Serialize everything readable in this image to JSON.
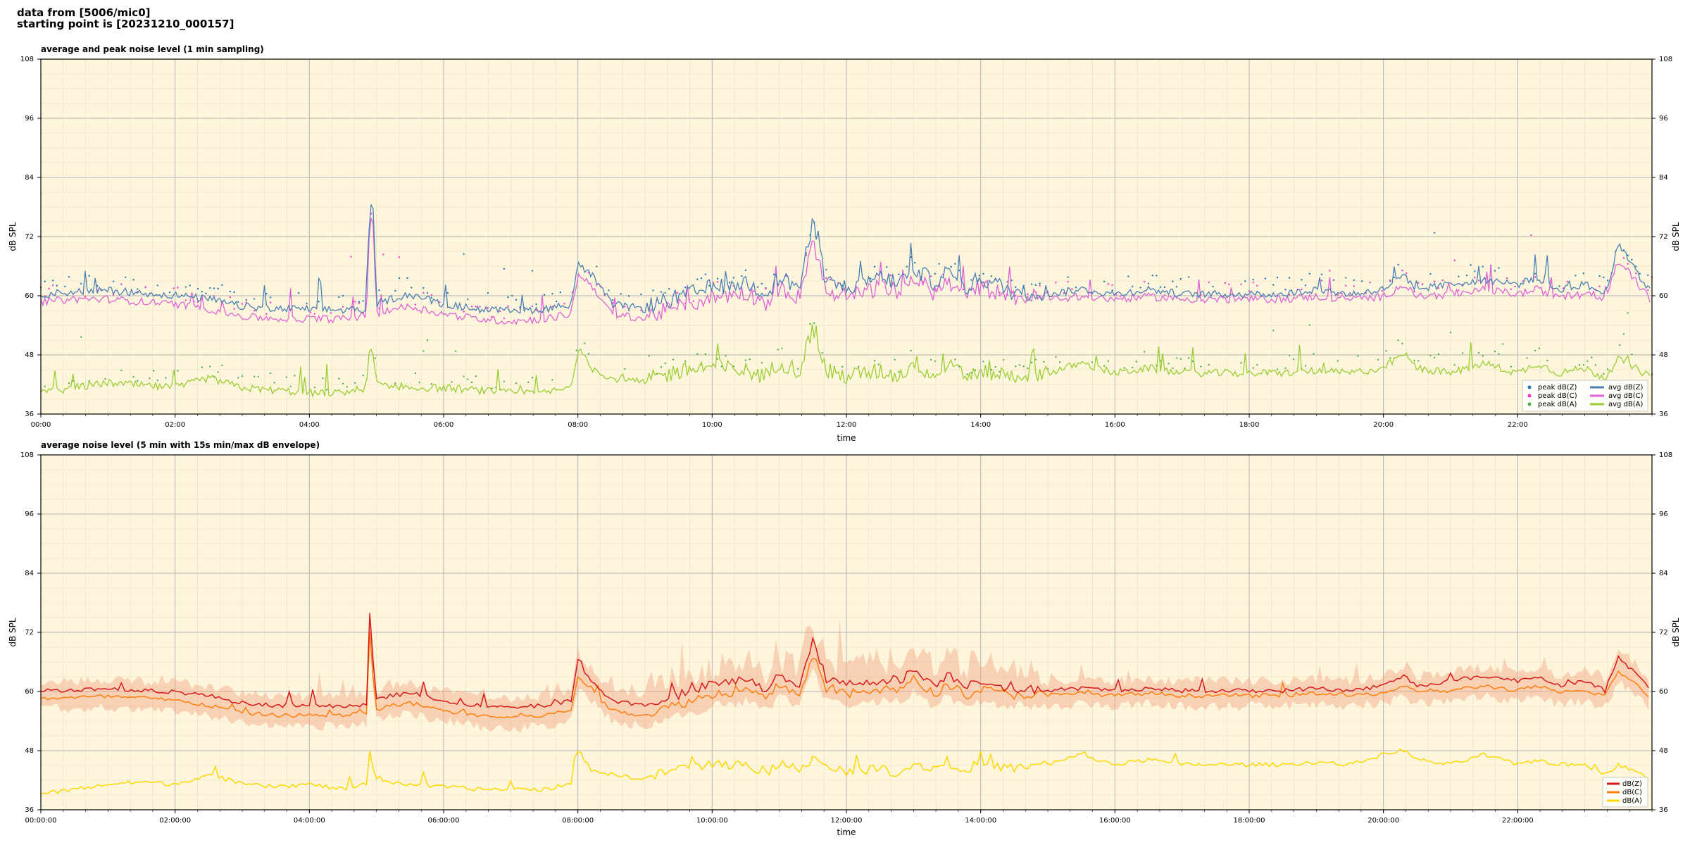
{
  "header": {
    "line1": "data from [5006/mic0]",
    "line2": "starting point is [20231210_000157]"
  },
  "chart_data": [
    {
      "type": "line",
      "title": "average and peak noise level (1 min sampling)",
      "xlabel": "time",
      "ylabel": "dB SPL",
      "ylim": [
        36,
        108
      ],
      "xlim_hours": [
        0,
        24
      ],
      "y_ticks": [
        "36",
        "48",
        "60",
        "72",
        "84",
        "96",
        "108"
      ],
      "x_ticks": [
        "00:00",
        "02:00",
        "04:00",
        "06:00",
        "08:00",
        "10:00",
        "12:00",
        "14:00",
        "16:00",
        "18:00",
        "20:00",
        "22:00"
      ],
      "grid": true,
      "legend_position": "bottom-right",
      "colors": {
        "background": "#fdf6dc",
        "avg_z": "#4a7fb5",
        "avg_c": "#e060d8",
        "avg_a": "#9acd32",
        "peak_z": "#1f77b4",
        "peak_c": "#ff33cc",
        "peak_a": "#4caf50"
      },
      "series": [
        {
          "name": "avg dB(Z)",
          "color": "#4a7fb5",
          "x": [
            0,
            0.5,
            1,
            1.5,
            2,
            2.5,
            3,
            3.5,
            4,
            4.5,
            4.85,
            4.9,
            4.95,
            5.0,
            5.2,
            5.5,
            6,
            6.5,
            7,
            7.5,
            7.9,
            8.0,
            8.2,
            8.5,
            9,
            9.5,
            10,
            10.5,
            10.8,
            11,
            11.3,
            11.5,
            11.7,
            12,
            12.5,
            12.8,
            13,
            13.3,
            13.5,
            13.8,
            14,
            14.5,
            15,
            15.5,
            16,
            16.5,
            17,
            17.5,
            18,
            18.5,
            19,
            19.5,
            20,
            20.3,
            20.5,
            21,
            21.5,
            22,
            22.3,
            22.6,
            23,
            23.3,
            23.5,
            24
          ],
          "y": [
            60,
            60.5,
            60.8,
            60.2,
            59.8,
            59,
            57.5,
            57,
            57,
            56.8,
            57,
            78,
            77,
            58,
            59,
            60,
            58,
            57,
            56.5,
            57,
            58,
            66,
            64,
            58,
            57,
            59,
            61,
            62,
            60,
            63,
            61,
            74,
            62,
            61,
            63,
            62,
            65,
            62,
            64,
            61,
            63,
            60,
            60,
            61,
            60,
            61,
            60,
            60,
            60,
            60,
            61,
            60,
            61,
            64,
            61,
            62,
            63,
            62,
            63,
            61,
            62,
            60,
            70,
            60
          ]
        },
        {
          "name": "avg dB(C)",
          "color": "#e060d8",
          "x": [
            0,
            0.5,
            1,
            1.5,
            2,
            2.5,
            3,
            3.5,
            4,
            4.5,
            4.85,
            4.9,
            4.95,
            5.0,
            5.2,
            5.5,
            6,
            6.5,
            7,
            7.5,
            7.9,
            8.0,
            8.2,
            8.5,
            9,
            9.5,
            10,
            10.5,
            10.8,
            11,
            11.3,
            11.5,
            11.7,
            12,
            12.5,
            12.8,
            13,
            13.3,
            13.5,
            13.8,
            14,
            14.5,
            15,
            15.5,
            16,
            16.5,
            17,
            17.5,
            18,
            18.5,
            19,
            19.5,
            20,
            20.3,
            20.5,
            21,
            21.5,
            22,
            22.3,
            22.6,
            23,
            23.3,
            23.5,
            24
          ],
          "y": [
            58.5,
            59,
            59,
            58.5,
            58,
            57,
            55.5,
            55,
            55,
            55,
            55.5,
            76,
            75,
            56,
            57,
            57.5,
            56,
            55,
            54.5,
            55,
            56,
            64,
            62,
            56,
            55,
            57,
            59,
            60,
            58,
            61,
            59,
            71,
            60,
            59,
            61,
            60,
            63,
            60,
            62,
            59,
            61,
            59,
            59,
            59.5,
            59,
            59.5,
            59,
            59,
            59,
            59,
            59.5,
            59,
            59.5,
            62,
            59.5,
            60,
            61,
            60,
            61,
            59.5,
            60,
            59,
            67,
            58.5
          ]
        },
        {
          "name": "avg dB(A)",
          "color": "#9acd32",
          "x": [
            0,
            0.5,
            1,
            1.5,
            2,
            2.5,
            3,
            3.5,
            4,
            4.5,
            4.85,
            4.9,
            4.95,
            5.0,
            5.2,
            5.5,
            6,
            6.5,
            7,
            7.5,
            7.9,
            8.0,
            8.2,
            8.5,
            9,
            9.5,
            10,
            10.5,
            10.8,
            11,
            11.3,
            11.5,
            11.7,
            12,
            12.5,
            12.8,
            13,
            13.3,
            13.5,
            13.8,
            14,
            14.5,
            15,
            15.5,
            16,
            16.5,
            17,
            17.5,
            18,
            18.5,
            19,
            19.5,
            20,
            20.3,
            20.5,
            21,
            21.5,
            22,
            22.3,
            22.6,
            23,
            23.3,
            23.5,
            24
          ],
          "y": [
            40,
            41,
            42,
            41.5,
            41,
            43,
            41,
            40.5,
            40,
            40,
            41,
            50,
            47,
            42,
            41.5,
            41,
            41,
            40.5,
            40,
            40,
            41,
            49,
            45,
            43,
            42,
            44,
            45,
            44,
            43,
            46,
            44,
            53,
            44,
            43,
            44,
            43,
            46,
            43,
            45,
            43,
            44,
            43,
            44,
            46,
            44,
            45,
            44,
            44,
            44,
            44,
            44.5,
            44,
            45,
            48,
            45,
            44,
            46,
            44,
            46,
            44,
            45,
            43,
            47,
            43
          ]
        }
      ],
      "peak_series": [
        {
          "name": "peak dB(Z)",
          "color": "#1f77b4"
        },
        {
          "name": "peak dB(C)",
          "color": "#ff33cc"
        },
        {
          "name": "peak dB(A)",
          "color": "#4caf50"
        }
      ]
    },
    {
      "type": "line",
      "title": "average noise level (5 min with 15s min/max dB envelope)",
      "xlabel": "time",
      "ylabel": "dB SPL",
      "ylim": [
        36,
        108
      ],
      "xlim_hours": [
        0,
        24
      ],
      "y_ticks": [
        "36",
        "48",
        "60",
        "72",
        "84",
        "96",
        "108"
      ],
      "x_ticks": [
        "00:00:00",
        "02:00:00",
        "04:00:00",
        "06:00:00",
        "08:00:00",
        "10:00:00",
        "12:00:00",
        "14:00:00",
        "16:00:00",
        "18:00:00",
        "20:00:00",
        "22:00:00"
      ],
      "grid": true,
      "legend_position": "bottom-right",
      "colors": {
        "background": "#fdf6dc",
        "envelope": "#f4a582"
      },
      "series": [
        {
          "name": "dB(Z)",
          "color": "#d7191c",
          "x": [
            0,
            0.5,
            1,
            1.5,
            2,
            2.5,
            3,
            3.5,
            4,
            4.5,
            4.85,
            4.9,
            4.95,
            5.0,
            5.2,
            5.5,
            6,
            6.5,
            7,
            7.5,
            7.9,
            8.0,
            8.2,
            8.5,
            9,
            9.5,
            10,
            10.5,
            10.8,
            11,
            11.3,
            11.5,
            11.7,
            12,
            12.5,
            12.8,
            13,
            13.3,
            13.5,
            13.8,
            14,
            14.5,
            15,
            15.5,
            16,
            16.5,
            17,
            17.5,
            18,
            18.5,
            19,
            19.5,
            20,
            20.3,
            20.5,
            21,
            21.5,
            22,
            22.3,
            22.6,
            23,
            23.3,
            23.5,
            24
          ],
          "y": [
            60,
            60.2,
            60.4,
            60,
            59.8,
            59,
            57.5,
            57,
            57,
            56.8,
            57,
            75,
            66,
            58,
            59,
            59.5,
            58,
            57,
            56.5,
            57,
            58,
            66,
            62,
            58,
            57,
            59,
            61,
            62,
            60,
            63,
            61,
            70,
            62,
            61,
            62,
            62,
            64,
            61,
            63,
            61,
            62,
            60,
            60,
            60.5,
            60,
            60.5,
            60,
            60,
            60,
            60,
            60.5,
            60,
            61,
            63,
            61,
            62,
            63,
            62,
            63,
            61,
            62,
            60,
            67,
            60
          ]
        },
        {
          "name": "dB(C)",
          "color": "#ff7f0e",
          "x": [
            0,
            0.5,
            1,
            1.5,
            2,
            2.5,
            3,
            3.5,
            4,
            4.5,
            4.85,
            4.9,
            4.95,
            5.0,
            5.2,
            5.5,
            6,
            6.5,
            7,
            7.5,
            7.9,
            8.0,
            8.2,
            8.5,
            9,
            9.5,
            10,
            10.5,
            10.8,
            11,
            11.3,
            11.5,
            11.7,
            12,
            12.5,
            12.8,
            13,
            13.3,
            13.5,
            13.8,
            14,
            14.5,
            15,
            15.5,
            16,
            16.5,
            17,
            17.5,
            18,
            18.5,
            19,
            19.5,
            20,
            20.3,
            20.5,
            21,
            21.5,
            22,
            22.3,
            22.6,
            23,
            23.3,
            23.5,
            24
          ],
          "y": [
            58.5,
            58.6,
            58.8,
            58.5,
            58,
            57,
            55.5,
            55,
            55,
            55,
            55.5,
            72,
            63,
            56,
            57,
            57.5,
            56,
            55,
            54.5,
            55,
            56,
            63,
            60,
            56,
            55,
            57,
            59,
            60,
            58,
            61,
            59,
            67,
            60,
            59,
            60,
            60,
            62,
            59,
            61,
            59,
            60,
            59,
            59,
            59.5,
            59,
            59.5,
            59,
            59,
            59,
            59,
            59.5,
            59,
            59.5,
            61,
            59.5,
            60,
            61,
            60,
            61,
            59.5,
            60,
            59,
            64,
            58.5
          ]
        },
        {
          "name": "dB(A)",
          "color": "#ffd700",
          "x": [
            0,
            0.5,
            1,
            1.5,
            2,
            2.5,
            3,
            3.5,
            4,
            4.5,
            4.85,
            4.9,
            4.95,
            5.0,
            5.2,
            5.5,
            6,
            6.5,
            7,
            7.5,
            7.9,
            8.0,
            8.2,
            8.5,
            9,
            9.5,
            10,
            10.5,
            10.8,
            11,
            11.3,
            11.5,
            11.7,
            12,
            12.5,
            12.8,
            13,
            13.3,
            13.5,
            13.8,
            14,
            14.5,
            15,
            15.5,
            16,
            16.5,
            17,
            17.5,
            18,
            18.5,
            19,
            19.5,
            20,
            20.3,
            20.5,
            21,
            21.5,
            22,
            22.3,
            22.6,
            23,
            23.3,
            23.5,
            24
          ],
          "y": [
            39,
            40,
            41,
            41.5,
            41,
            43,
            41,
            40.5,
            41,
            40,
            41,
            48,
            44,
            42,
            41.5,
            41,
            40.5,
            40,
            40,
            40,
            41,
            48,
            44,
            43,
            42,
            44,
            45,
            44.5,
            43,
            45,
            44,
            46,
            44,
            43.5,
            44,
            43,
            45,
            44,
            45,
            44,
            45,
            44,
            45,
            47,
            45,
            46,
            45,
            45,
            45,
            45,
            45.5,
            45,
            47,
            48,
            46,
            45,
            47,
            45,
            46,
            45,
            45,
            43,
            45,
            42
          ]
        }
      ]
    }
  ]
}
